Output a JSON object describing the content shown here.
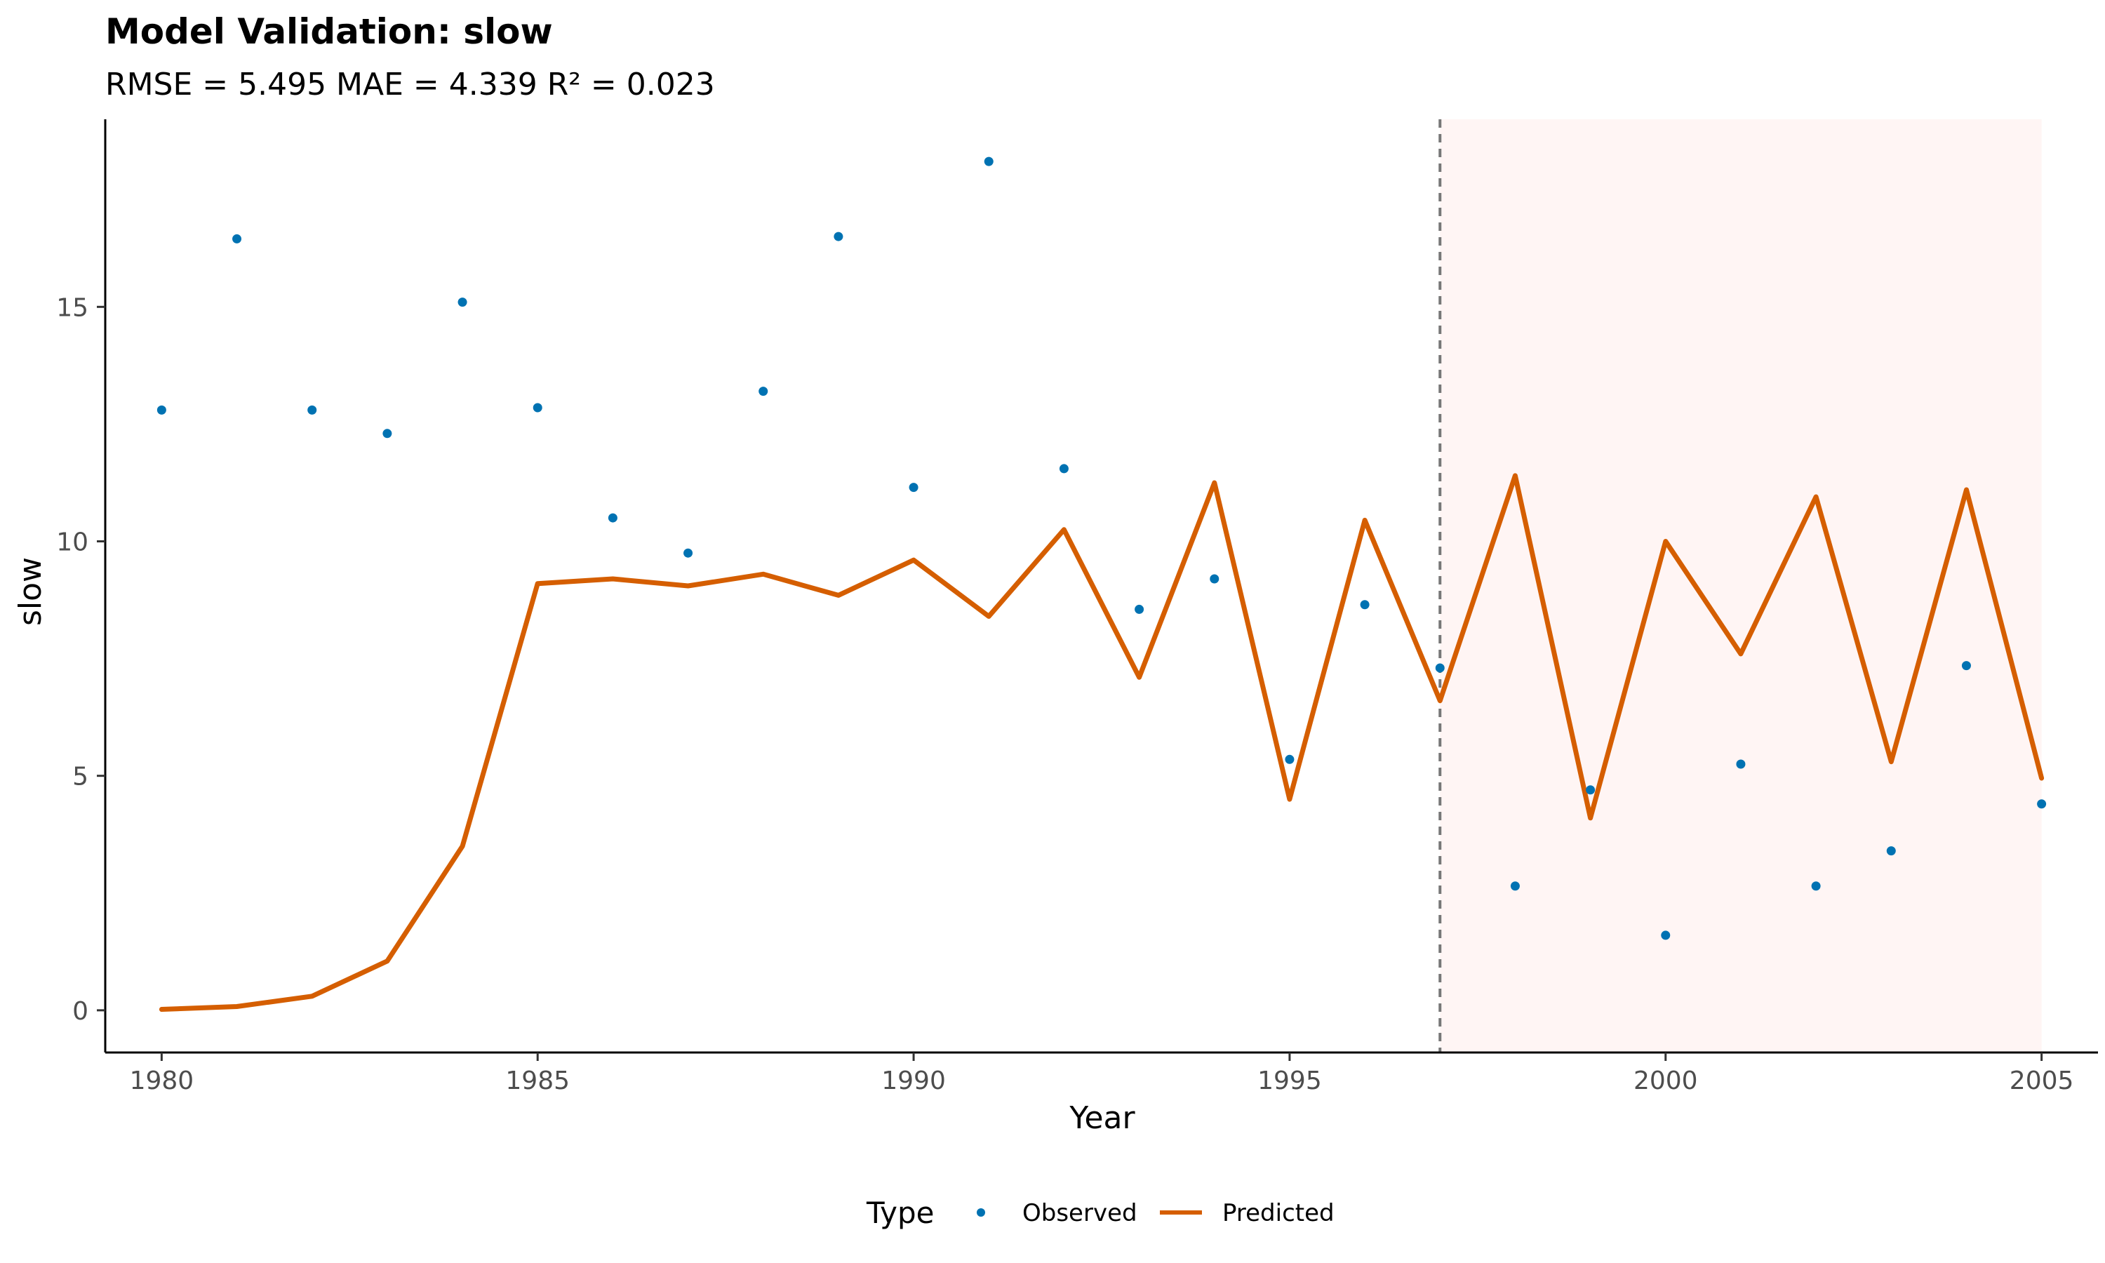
{
  "chart_data": {
    "type": "line",
    "title": "Model Validation: slow",
    "subtitle": "RMSE = 5.495 MAE = 4.339 R² = 0.023",
    "xlabel": "Year",
    "ylabel": "slow",
    "xlim": [
      1979.25,
      2005.75
    ],
    "ylim": [
      -0.9,
      19.0
    ],
    "x_ticks": [
      1980,
      1985,
      1990,
      1995,
      2000,
      2005
    ],
    "y_ticks": [
      0,
      5,
      10,
      15
    ],
    "grid": false,
    "validation_start": 1997,
    "validation_end": 2005,
    "legend": {
      "title": "Type",
      "position": "bottom"
    },
    "x": [
      1980,
      1981,
      1982,
      1983,
      1984,
      1985,
      1986,
      1987,
      1988,
      1989,
      1990,
      1991,
      1992,
      1993,
      1994,
      1995,
      1996,
      1997,
      1998,
      1999,
      2000,
      2001,
      2002,
      2003,
      2004,
      2005
    ],
    "series": [
      {
        "name": "Observed",
        "kind": "points",
        "color": "#0072B2",
        "values": [
          12.8,
          16.45,
          12.8,
          12.3,
          15.1,
          12.85,
          10.5,
          9.75,
          13.2,
          16.5,
          11.15,
          18.1,
          11.55,
          8.55,
          9.2,
          5.35,
          8.65,
          7.3,
          2.65,
          4.7,
          1.6,
          5.25,
          2.65,
          3.4,
          7.35,
          4.4
        ]
      },
      {
        "name": "Predicted",
        "kind": "line",
        "color": "#D55E00",
        "values": [
          0.02,
          0.08,
          0.3,
          1.05,
          3.5,
          9.1,
          9.2,
          9.05,
          9.3,
          8.85,
          9.6,
          8.4,
          10.25,
          7.1,
          11.25,
          4.5,
          10.45,
          6.6,
          11.4,
          4.1,
          10.0,
          7.6,
          10.95,
          5.3,
          11.1,
          4.95
        ]
      }
    ]
  }
}
